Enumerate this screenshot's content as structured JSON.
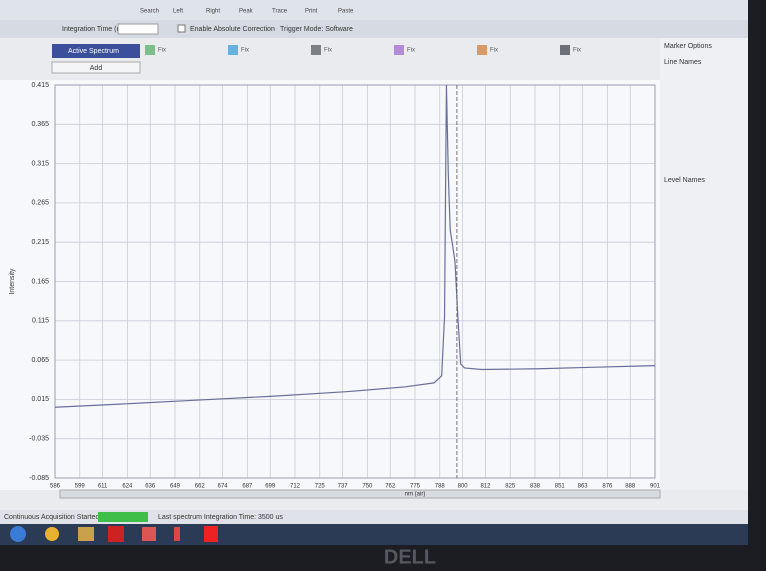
{
  "toolbar": {
    "buttons": [
      "Search",
      "Left",
      "Right",
      "Peak",
      "Trace",
      "Print",
      "Paste"
    ],
    "integration_label": "Integration Time (ms):",
    "absolute_correction": "Enable Absolute Correction",
    "trigger_mode": "Trigger Mode: Software"
  },
  "tabs": {
    "active": "Active Spectrum",
    "fixed": [
      "Fix",
      "Fix",
      "Fix",
      "Fix",
      "Fix",
      "Fix"
    ],
    "add": "Add"
  },
  "chart_data": {
    "type": "line",
    "x_label": "nm (air)",
    "y_label": "Intensity",
    "x": [
      586,
      620,
      660,
      700,
      740,
      770,
      785,
      789,
      790.5,
      791.5,
      792.5,
      793.5,
      794.5,
      796,
      797.5,
      799,
      801,
      810,
      840,
      870,
      901
    ],
    "series": [
      {
        "name": "Active Spectrum",
        "color": "#6a6f9a",
        "values": [
          0.005,
          0.009,
          0.014,
          0.019,
          0.025,
          0.031,
          0.036,
          0.045,
          0.12,
          0.415,
          0.3,
          0.23,
          0.215,
          0.19,
          0.12,
          0.06,
          0.055,
          0.053,
          0.054,
          0.056,
          0.058
        ]
      }
    ],
    "marker_x": 797,
    "xlim": [
      586,
      901
    ],
    "ylim": [
      -0.085,
      0.415
    ],
    "xticks": [
      586,
      599,
      611,
      624,
      636,
      649,
      662,
      674,
      687,
      699,
      712,
      725,
      737,
      750,
      762,
      775,
      788,
      800,
      812,
      825,
      838,
      851,
      863,
      876,
      888,
      901
    ],
    "yticks": [
      0.415,
      0.365,
      0.315,
      0.265,
      0.215,
      0.165,
      0.115,
      0.065,
      0.015,
      -0.035,
      -0.085
    ],
    "grid": true
  },
  "side_panel": {
    "marker_options": "Marker Options",
    "line_names": "Line Names",
    "level_names": "Level Names"
  },
  "status": {
    "state": "Continuous Acquisition Started",
    "message": "Last spectrum Integration Time: 3500 us"
  },
  "bezel_brand": "DELL"
}
